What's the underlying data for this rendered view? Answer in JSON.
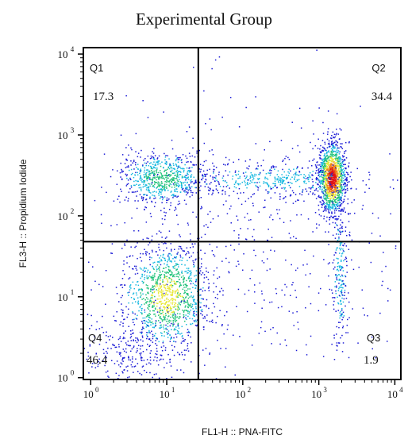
{
  "chart_data": {
    "type": "scatter",
    "title": "Experimental Group",
    "xlabel": "FL1-H :: PNA-FITC",
    "ylabel": "FL3-H :: Propidium Iodide",
    "x_scale": "log",
    "y_scale": "log",
    "xlim": [
      0.8,
      12000
    ],
    "ylim": [
      0.95,
      12000
    ],
    "x_ticks": [
      {
        "base": "10",
        "exp": "0",
        "value": 1
      },
      {
        "base": "10",
        "exp": "1",
        "value": 10
      },
      {
        "base": "10",
        "exp": "2",
        "value": 100
      },
      {
        "base": "10",
        "exp": "3",
        "value": 1000
      },
      {
        "base": "10",
        "exp": "4",
        "value": 10000
      }
    ],
    "y_ticks": [
      {
        "base": "10",
        "exp": "0",
        "value": 1
      },
      {
        "base": "10",
        "exp": "1",
        "value": 10
      },
      {
        "base": "10",
        "exp": "2",
        "value": 100
      },
      {
        "base": "10",
        "exp": "3",
        "value": 1000
      },
      {
        "base": "10",
        "exp": "4",
        "value": 10000
      }
    ],
    "gates": {
      "x": 26,
      "y": 48
    },
    "quadrants": [
      {
        "name": "Q1",
        "value": "17.3",
        "position": "top-left"
      },
      {
        "name": "Q2",
        "value": "34.4",
        "position": "top-right"
      },
      {
        "name": "Q3",
        "value": "1.9",
        "position": "bottom-right"
      },
      {
        "name": "Q4",
        "value": "46.4",
        "position": "bottom-left"
      }
    ],
    "density_colors": [
      "#1b1bd6",
      "#17b8e0",
      "#22c27a",
      "#e8e83a",
      "#f07f1a",
      "#e01515"
    ],
    "clusters": [
      {
        "quadrant": "Q4",
        "center_x": 10,
        "center_y": 10,
        "spread_x": 0.28,
        "spread_y": 0.32,
        "count": 1150,
        "peak": 3
      },
      {
        "quadrant": "Q4",
        "center_x": 3,
        "center_y": 2,
        "spread_x": 0.35,
        "spread_y": 0.25,
        "count": 260,
        "peak": 0
      },
      {
        "quadrant": "Q1",
        "center_x": 9,
        "center_y": 290,
        "spread_x": 0.28,
        "spread_y": 0.15,
        "count": 700,
        "peak": 2
      },
      {
        "quadrant": "Q2",
        "center_x": 1500,
        "center_y": 290,
        "spread_x": 0.09,
        "spread_y": 0.22,
        "count": 1350,
        "peak": 5
      },
      {
        "quadrant": "Q2",
        "center_x": 250,
        "center_y": 280,
        "spread_x": 0.6,
        "spread_y": 0.1,
        "count": 420,
        "peak": 1
      },
      {
        "quadrant": "Q3",
        "center_x": 1900,
        "center_y": 20,
        "spread_x": 0.05,
        "spread_y": 0.45,
        "count": 220,
        "peak": 1
      },
      {
        "quadrant": "all",
        "center_x": 120,
        "center_y": 40,
        "spread_x": 1.1,
        "spread_y": 0.9,
        "count": 520,
        "peak": 0
      }
    ]
  }
}
